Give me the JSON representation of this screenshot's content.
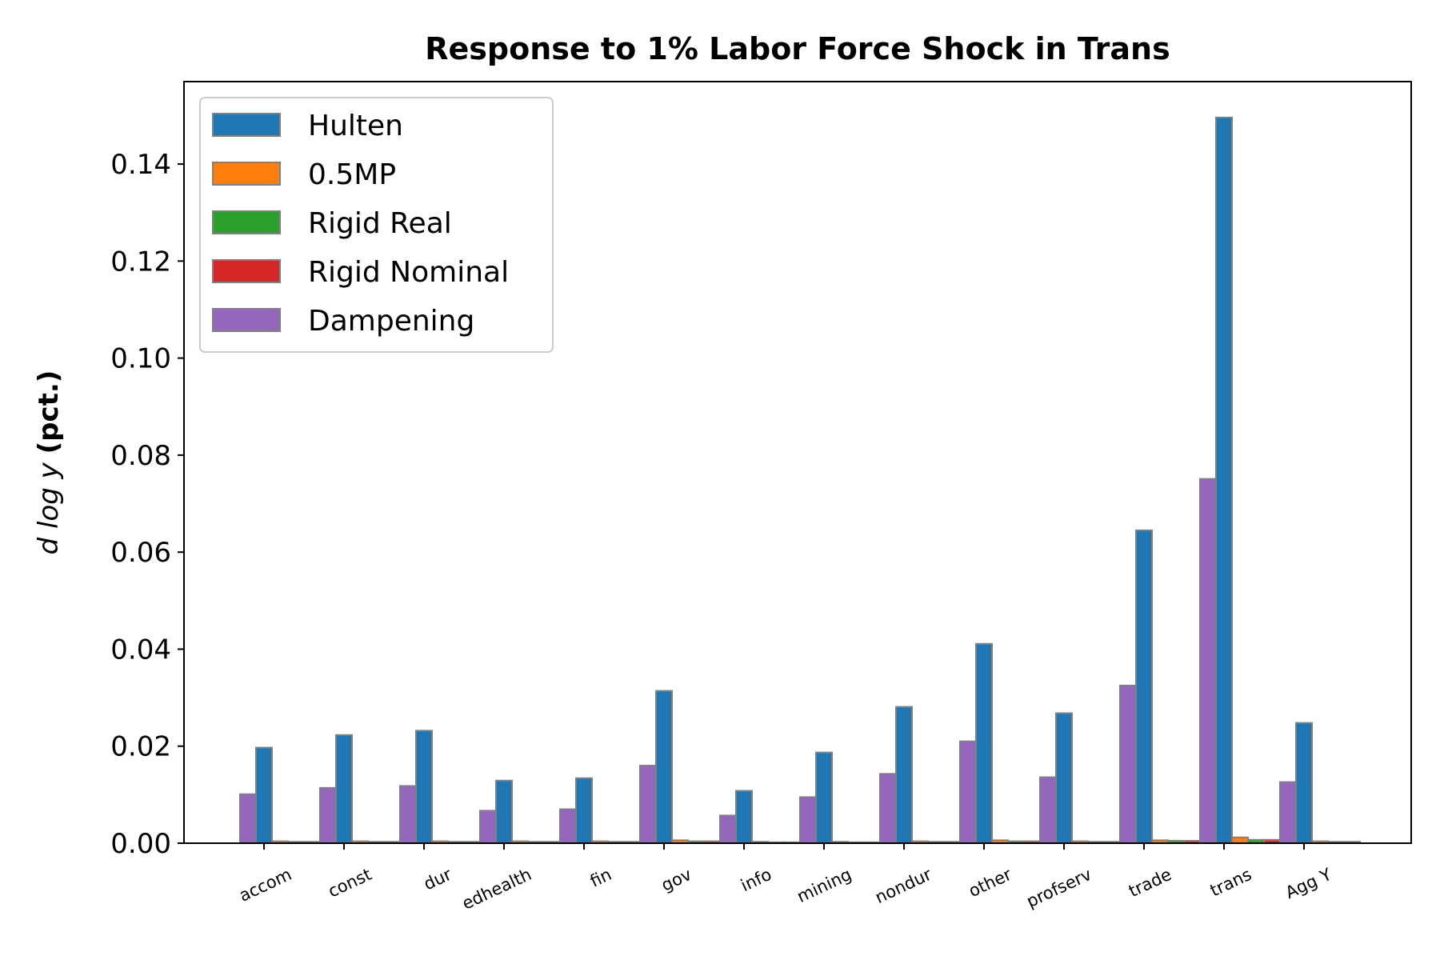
{
  "chart_data": {
    "type": "bar",
    "title": "Response to 1% Labor Force Shock in Trans",
    "ylabel_math": "d log y",
    "ylabel": "(pct.)",
    "xlabel": "",
    "ylim": [
      0,
      0.157
    ],
    "yticks": [
      "0.00",
      "0.02",
      "0.04",
      "0.06",
      "0.08",
      "0.10",
      "0.12",
      "0.14"
    ],
    "categories": [
      "accom",
      "const",
      "dur",
      "edhealth",
      "fin",
      "gov",
      "info",
      "mining",
      "nondur",
      "other",
      "profserv",
      "trade",
      "trans",
      "Agg Y"
    ],
    "legend_position": "upper-left",
    "grid": false,
    "series": [
      {
        "name": "Hulten",
        "color": "#1f77b4",
        "values": [
          0.0197,
          0.0223,
          0.0232,
          0.0129,
          0.0134,
          0.0314,
          0.0108,
          0.0187,
          0.0281,
          0.0411,
          0.0268,
          0.0645,
          0.1496,
          0.0248
        ]
      },
      {
        "name": "0.5MP",
        "color": "#ff7f0e",
        "values": [
          0.0004,
          0.0004,
          0.0004,
          0.0004,
          0.0004,
          0.0006,
          0.0003,
          0.0003,
          0.0004,
          0.0006,
          0.0004,
          0.0006,
          0.0012,
          0.0004
        ]
      },
      {
        "name": "Rigid Real",
        "color": "#2ca02c",
        "values": [
          0.0003,
          0.0003,
          0.0003,
          0.0003,
          0.0003,
          0.0004,
          0.0002,
          0.0002,
          0.0003,
          0.0004,
          0.0003,
          0.0005,
          0.0007,
          0.0003
        ]
      },
      {
        "name": "Rigid Nominal",
        "color": "#d62728",
        "values": [
          0.0003,
          0.0003,
          0.0003,
          0.0003,
          0.0003,
          0.0004,
          0.0002,
          0.0002,
          0.0003,
          0.0004,
          0.0003,
          0.0005,
          0.0007,
          0.0003
        ]
      },
      {
        "name": "Dampening",
        "color": "#9467bd",
        "values": [
          0.0101,
          0.0114,
          0.0118,
          0.0067,
          0.007,
          0.016,
          0.0057,
          0.0095,
          0.0143,
          0.021,
          0.0136,
          0.0325,
          0.0751,
          0.0126
        ]
      }
    ]
  }
}
